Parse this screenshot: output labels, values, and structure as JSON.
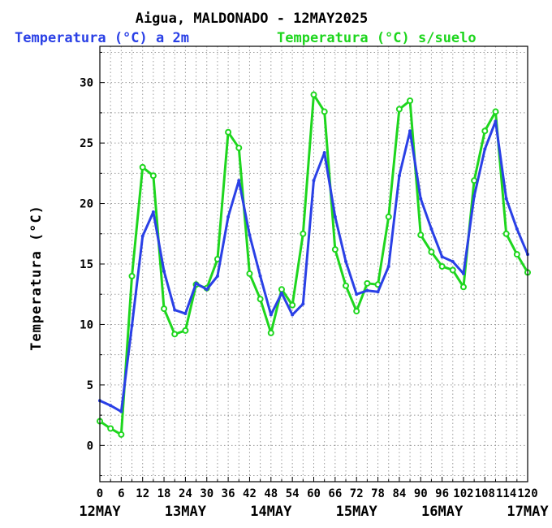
{
  "chart_data": {
    "type": "line",
    "title": "Aigua, MALDONADO - 12MAY2025",
    "ylabel": "Temperatura (°C)",
    "xlim": [
      0,
      120
    ],
    "ylim": [
      -3,
      33
    ],
    "x_ticks": [
      0,
      6,
      12,
      18,
      24,
      30,
      36,
      42,
      48,
      54,
      60,
      66,
      72,
      78,
      84,
      90,
      96,
      102,
      108,
      114,
      120
    ],
    "y_ticks": [
      0,
      5,
      10,
      15,
      20,
      25,
      30
    ],
    "day_labels": [
      {
        "x": 0,
        "label": "12MAY"
      },
      {
        "x": 24,
        "label": "13MAY"
      },
      {
        "x": 48,
        "label": "14MAY"
      },
      {
        "x": 72,
        "label": "15MAY"
      },
      {
        "x": 96,
        "label": "16MAY"
      },
      {
        "x": 120,
        "label": "17MAY"
      }
    ],
    "grid": true,
    "x": [
      0,
      3,
      6,
      9,
      12,
      15,
      18,
      21,
      24,
      27,
      30,
      33,
      36,
      39,
      42,
      45,
      48,
      51,
      54,
      57,
      60,
      63,
      66,
      69,
      72,
      75,
      78,
      81,
      84,
      87,
      90,
      93,
      96,
      99,
      102,
      105,
      108,
      111,
      114,
      117,
      120
    ],
    "series": [
      {
        "name": "Temperatura (°C) a 2m",
        "color": "#2a40e6",
        "marker": "dot",
        "values": [
          3.7,
          3.3,
          2.8,
          9.9,
          17.3,
          19.3,
          14.4,
          11.2,
          10.9,
          13.4,
          12.9,
          14.0,
          18.9,
          21.9,
          17.4,
          14.0,
          10.8,
          12.6,
          10.8,
          11.7,
          21.9,
          24.2,
          18.9,
          15.2,
          12.5,
          12.8,
          12.7,
          14.8,
          22.3,
          26.0,
          20.4,
          17.9,
          15.6,
          15.2,
          14.2,
          20.6,
          24.5,
          26.8,
          20.4,
          17.9,
          15.8
        ]
      },
      {
        "name": "Temperatura (°C) s/suelo",
        "color": "#1ed61e",
        "marker": "circle",
        "values": [
          2.0,
          1.4,
          0.9,
          14.0,
          23.0,
          22.3,
          11.3,
          9.2,
          9.5,
          13.3,
          13.0,
          15.4,
          25.9,
          24.6,
          14.2,
          12.1,
          9.3,
          12.9,
          11.6,
          17.5,
          29.0,
          27.6,
          16.2,
          13.2,
          11.1,
          13.4,
          13.3,
          18.9,
          27.8,
          28.5,
          17.4,
          16.0,
          14.8,
          14.5,
          13.1,
          21.9,
          26.0,
          27.6,
          17.5,
          15.8,
          14.3
        ]
      }
    ]
  }
}
